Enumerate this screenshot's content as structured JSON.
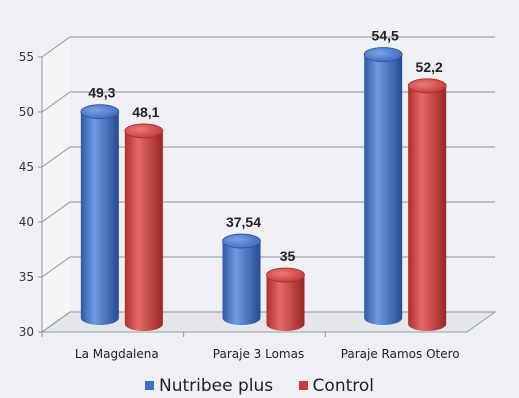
{
  "chart_data": {
    "type": "bar",
    "categories": [
      "La Magdalena",
      "Paraje 3 Lomas",
      "Paraje Ramos Otero"
    ],
    "series": [
      {
        "name": "Nutribee plus",
        "values": [
          49.3,
          37.54,
          54.5
        ],
        "labels": [
          "49,3",
          "37,54",
          "54,5"
        ],
        "color": "#3f6fc4"
      },
      {
        "name": "Control",
        "values": [
          48.1,
          35,
          52.2
        ],
        "labels": [
          "48,1",
          "35",
          "52,2"
        ],
        "color": "#cc3c3a"
      }
    ],
    "yticks": [
      "30",
      "35",
      "40",
      "45",
      "50",
      "55"
    ],
    "ylim": [
      30,
      55
    ],
    "grid": true,
    "legend_position": "bottom",
    "title": "",
    "xlabel": "",
    "ylabel": ""
  }
}
